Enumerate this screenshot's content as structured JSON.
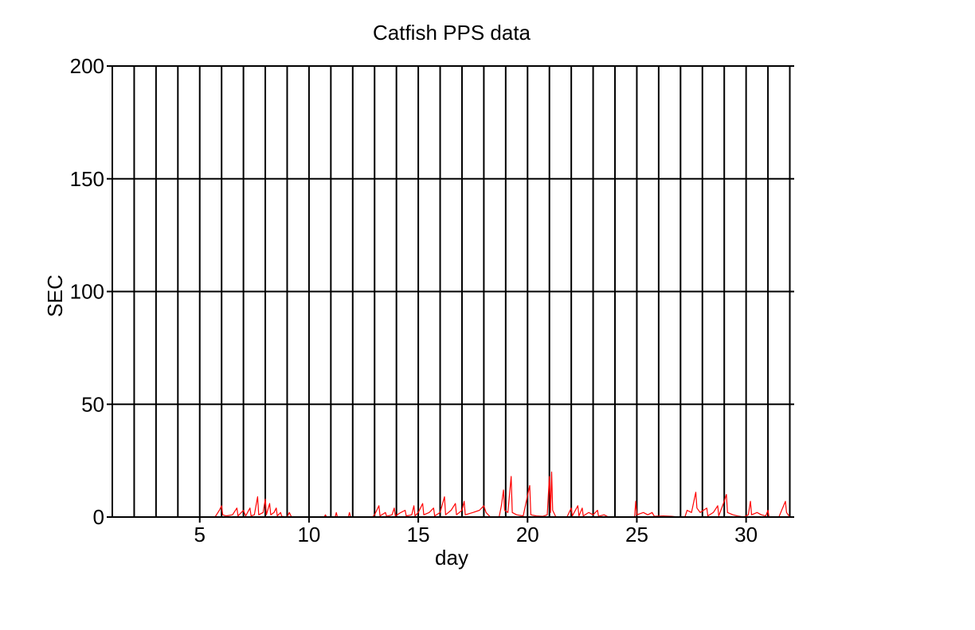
{
  "chart_data": {
    "type": "line",
    "title": "Catfish PPS data",
    "xlabel": "day",
    "ylabel": "SEC",
    "xlim": [
      1,
      32.2
    ],
    "ylim": [
      0,
      200
    ],
    "x_ticks": [
      5,
      10,
      15,
      20,
      25,
      30
    ],
    "y_ticks": [
      0,
      50,
      100,
      150,
      200
    ],
    "grid": {
      "vertical_lines_at_each_day": true,
      "horizontal": true
    },
    "grid_days": [
      2,
      3,
      4,
      5,
      6,
      7,
      8,
      9,
      10,
      11,
      12,
      13,
      14,
      15,
      16,
      17,
      18,
      19,
      20,
      21,
      22,
      23,
      24,
      25,
      26,
      27,
      28,
      29,
      30,
      31,
      32
    ],
    "series": [
      {
        "color": "#ff0000",
        "points": [
          [
            5.7,
            0
          ],
          [
            5.8,
            1.5
          ],
          [
            5.9,
            3
          ],
          [
            6.0,
            5
          ],
          [
            6.05,
            1
          ],
          [
            6.2,
            0.5
          ],
          [
            6.5,
            1
          ],
          [
            6.7,
            4
          ],
          [
            6.75,
            0.5
          ],
          [
            7.0,
            3
          ],
          [
            7.1,
            0.5
          ],
          [
            7.3,
            4
          ],
          [
            7.35,
            0.5
          ],
          [
            7.5,
            1
          ],
          [
            7.65,
            9
          ],
          [
            7.7,
            1
          ],
          [
            7.9,
            2
          ],
          [
            8.0,
            8
          ],
          [
            8.05,
            1
          ],
          [
            8.2,
            6
          ],
          [
            8.25,
            1
          ],
          [
            8.4,
            2
          ],
          [
            8.5,
            4
          ],
          [
            8.55,
            0.5
          ],
          [
            8.7,
            2
          ],
          [
            8.75,
            0.3
          ],
          [
            9.0,
            0
          ],
          [
            9.1,
            2
          ],
          [
            9.2,
            0
          ],
          [
            10.7,
            0
          ],
          [
            10.75,
            1
          ],
          [
            10.8,
            0
          ],
          [
            11.2,
            0
          ],
          [
            11.25,
            2
          ],
          [
            11.3,
            0
          ],
          [
            11.8,
            0
          ],
          [
            11.85,
            2
          ],
          [
            11.9,
            0
          ],
          [
            12.9,
            0
          ],
          [
            13.0,
            1
          ],
          [
            13.2,
            5
          ],
          [
            13.25,
            0.5
          ],
          [
            13.5,
            2
          ],
          [
            13.55,
            0.3
          ],
          [
            13.8,
            1
          ],
          [
            13.9,
            4
          ],
          [
            13.95,
            0.5
          ],
          [
            14.2,
            2
          ],
          [
            14.4,
            3
          ],
          [
            14.45,
            0.5
          ],
          [
            14.7,
            1
          ],
          [
            14.8,
            5
          ],
          [
            14.85,
            0.5
          ],
          [
            15.0,
            2
          ],
          [
            15.2,
            6
          ],
          [
            15.25,
            1
          ],
          [
            15.5,
            2
          ],
          [
            15.7,
            4
          ],
          [
            15.75,
            0.5
          ],
          [
            16.0,
            2
          ],
          [
            16.2,
            9
          ],
          [
            16.25,
            1
          ],
          [
            16.5,
            3
          ],
          [
            16.7,
            6
          ],
          [
            16.75,
            1
          ],
          [
            17.0,
            3
          ],
          [
            17.1,
            7
          ],
          [
            17.15,
            1
          ],
          [
            17.5,
            2
          ],
          [
            17.8,
            3
          ],
          [
            18.0,
            5
          ],
          [
            18.1,
            2
          ],
          [
            18.3,
            0
          ],
          [
            18.7,
            0
          ],
          [
            18.8,
            5
          ],
          [
            18.9,
            12
          ],
          [
            18.95,
            3
          ],
          [
            19.1,
            2
          ],
          [
            19.25,
            18
          ],
          [
            19.3,
            2
          ],
          [
            19.5,
            1
          ],
          [
            19.8,
            0.5
          ],
          [
            20.1,
            14
          ],
          [
            20.15,
            1
          ],
          [
            20.4,
            0.5
          ],
          [
            20.7,
            0.3
          ],
          [
            20.9,
            1
          ],
          [
            21.0,
            18
          ],
          [
            21.05,
            2
          ],
          [
            21.1,
            20
          ],
          [
            21.15,
            3
          ],
          [
            21.3,
            0
          ],
          [
            21.8,
            0
          ],
          [
            22.0,
            4
          ],
          [
            22.05,
            0.5
          ],
          [
            22.3,
            5
          ],
          [
            22.35,
            0.5
          ],
          [
            22.5,
            4
          ],
          [
            22.55,
            0.5
          ],
          [
            22.8,
            2
          ],
          [
            23.0,
            1
          ],
          [
            23.2,
            3
          ],
          [
            23.25,
            0.3
          ],
          [
            23.5,
            1
          ],
          [
            23.7,
            0
          ],
          [
            24.9,
            0
          ],
          [
            24.95,
            7
          ],
          [
            25.0,
            1
          ],
          [
            25.3,
            2
          ],
          [
            25.5,
            1
          ],
          [
            25.7,
            2
          ],
          [
            25.8,
            0.3
          ],
          [
            26.2,
            0.5
          ],
          [
            26.6,
            0.3
          ],
          [
            26.9,
            0
          ],
          [
            27.2,
            0
          ],
          [
            27.3,
            3
          ],
          [
            27.5,
            2
          ],
          [
            27.7,
            11
          ],
          [
            27.75,
            4
          ],
          [
            27.9,
            2
          ],
          [
            28.2,
            4
          ],
          [
            28.25,
            0.5
          ],
          [
            28.5,
            2
          ],
          [
            28.7,
            5
          ],
          [
            28.75,
            0.5
          ],
          [
            29.0,
            7
          ],
          [
            29.1,
            10
          ],
          [
            29.15,
            2
          ],
          [
            29.4,
            1
          ],
          [
            29.6,
            0.5
          ],
          [
            29.9,
            0
          ],
          [
            30.1,
            1
          ],
          [
            30.2,
            7
          ],
          [
            30.25,
            1
          ],
          [
            30.5,
            2
          ],
          [
            30.7,
            1
          ],
          [
            30.9,
            0.5
          ],
          [
            31.0,
            3
          ],
          [
            31.05,
            0
          ],
          [
            31.5,
            0
          ],
          [
            31.8,
            7
          ],
          [
            31.85,
            2
          ],
          [
            32.0,
            0
          ]
        ]
      }
    ]
  }
}
